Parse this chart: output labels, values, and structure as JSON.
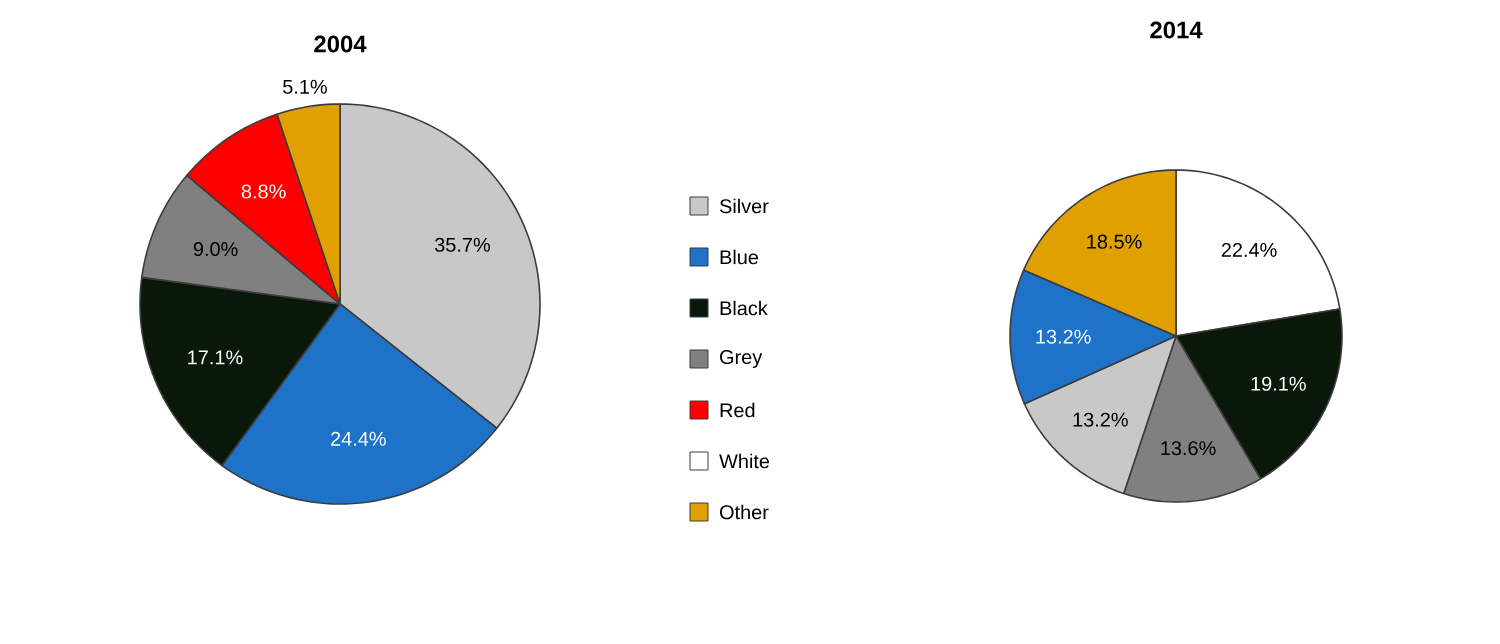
{
  "chart_data": [
    {
      "type": "pie",
      "title": "2004",
      "categories": [
        "Silver",
        "Blue",
        "Black",
        "Grey",
        "Red",
        "White",
        "Other"
      ],
      "values": [
        35.7,
        24.4,
        17.1,
        9.0,
        8.8,
        null,
        5.1
      ],
      "value_labels": [
        "35.7%",
        "24.4%",
        "17.1%",
        "9.0%",
        "8.8%",
        null,
        "5.1%"
      ],
      "colors": [
        "#c8c8c8",
        "#1e73c8",
        "#0a180a",
        "#808080",
        "#ff0000",
        "#ffffff",
        "#e0a000"
      ],
      "legend": "right"
    },
    {
      "type": "pie",
      "title": "2014",
      "categories": [
        null,
        null,
        null,
        null,
        null,
        null
      ],
      "values": [
        22.4,
        19.1,
        13.6,
        13.2,
        13.2,
        18.5
      ],
      "value_labels": [
        "22.4%",
        "19.1%",
        "13.6%",
        "13.2%",
        "13.2%",
        "18.5%"
      ],
      "colors": [
        "#ffffff",
        "#0a180a",
        "#808080",
        "#c8c8c8",
        "#1e73c8",
        "#e0a000"
      ]
    }
  ]
}
